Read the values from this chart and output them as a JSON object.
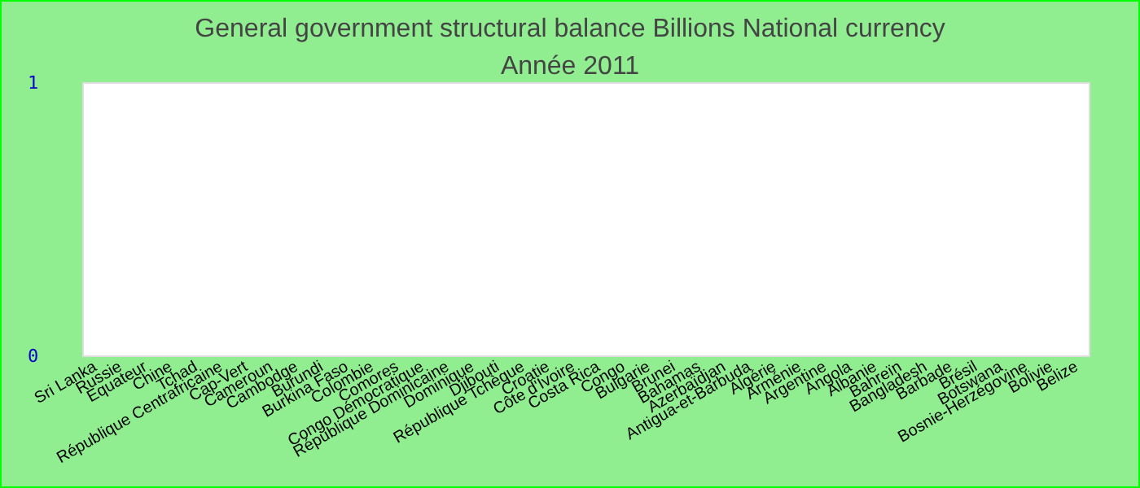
{
  "chart_data": {
    "type": "bar",
    "title": "General government structural balance Billions National currency",
    "subtitle": "Année 2011",
    "categories": [
      "Sri Lanka",
      "Russie",
      "Equateur",
      "Chine",
      "Tchad",
      "République Centrafricaine",
      "Cap-Vert",
      "Cameroun",
      "Cambodge",
      "Burundi",
      "Burkina Faso",
      "Colombie",
      "Comores",
      "Congo Démocratique",
      "République Dominicaine",
      "Dominique",
      "Djibouti",
      "République Tchèque",
      "Croatie",
      "Côte d'Ivoire",
      "Costa Rica",
      "Congo",
      "Bulgarie",
      "Brunei",
      "Bahamas",
      "Azerbaïdjan",
      "Antigua-et-Barbuda",
      "Algérie",
      "Arménie",
      "Argentine",
      "Angola",
      "Albanie",
      "Bahreïn",
      "Bangladesh",
      "Barbade",
      "Brésil",
      "Botswana",
      "Bosnie-Herzégovine",
      "Bolivie",
      "Belize"
    ],
    "values": [
      0,
      0,
      0,
      0,
      0,
      0,
      0,
      0,
      0,
      0,
      0,
      0,
      0,
      0,
      0,
      0,
      0,
      0,
      0,
      0,
      0,
      0,
      0,
      0,
      0,
      0,
      0,
      0,
      0,
      0,
      0,
      0,
      0,
      0,
      0,
      0,
      0,
      0,
      0,
      0
    ],
    "ylim": [
      0,
      1
    ],
    "yticks": [
      0,
      1
    ]
  }
}
